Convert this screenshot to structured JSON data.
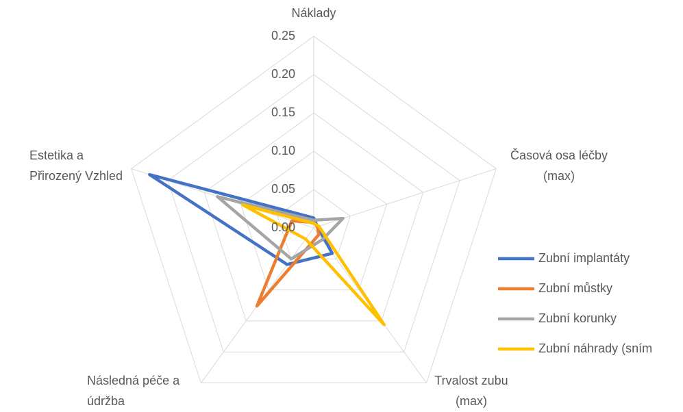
{
  "chart_data": {
    "type": "radar",
    "categories": [
      [
        "Náklady"
      ],
      [
        "Časová osa léčby",
        "(max)"
      ],
      [
        "Trvalost zubu",
        "(max)"
      ],
      [
        "Následná péče a",
        "údržba"
      ],
      [
        "Estetika a",
        "Přirozený Vzhled"
      ]
    ],
    "ylim": [
      0,
      0.25
    ],
    "yticks": [
      {
        "value": 0,
        "label": "0.00"
      },
      0.05,
      {
        "value": 0.1,
        "label": "0.10"
      },
      0.15,
      {
        "value": 0.2,
        "label": "0.20"
      },
      0.25
    ],
    "grid": true,
    "legend": "right",
    "series": [
      {
        "name": "Zubní implantáty",
        "color": "#4472c4",
        "values": [
          0.013,
          0.005,
          0.041,
          0.059,
          0.225
        ]
      },
      {
        "name": "Zubní můstky",
        "color": "#ed7d31",
        "values": [
          0.007,
          0.005,
          0.011,
          0.126,
          0.03
        ]
      },
      {
        "name": "Zubní korunky",
        "color": "#a5a5a5",
        "values": [
          0.01,
          0.04,
          0.019,
          0.05,
          0.132
        ]
      },
      {
        "name": "Zubní náhrady (sním",
        "color": "#ffc000",
        "values": [
          0.006,
          0.007,
          0.156,
          0.018,
          0.097
        ]
      }
    ]
  }
}
